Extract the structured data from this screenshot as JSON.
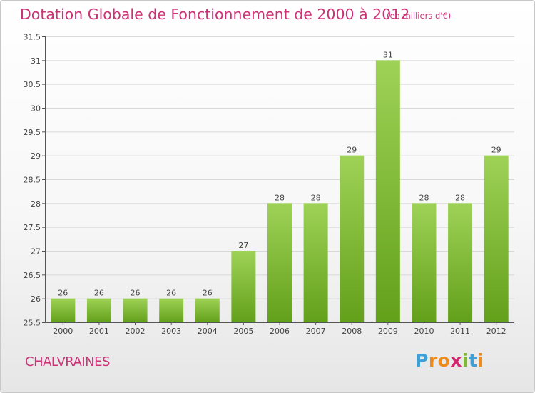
{
  "header": {
    "title": "Dotation Globale de Fonctionnement de 2000 à 2012",
    "subtitle": "(en milliers d'€)"
  },
  "footer": {
    "commune": "CHALVRAINES",
    "logo": "Proxiti",
    "logo_letters": [
      {
        "ch": "P",
        "color": "#3fa0d8"
      },
      {
        "ch": "r",
        "color": "#f08a1a"
      },
      {
        "ch": "o",
        "color": "#f08a1a"
      },
      {
        "ch": "x",
        "color": "#d4266f"
      },
      {
        "ch": "i",
        "color": "#7fb832"
      },
      {
        "ch": "t",
        "color": "#3fa0d8"
      },
      {
        "ch": "i",
        "color": "#f08a1a"
      }
    ]
  },
  "colors": {
    "title": "#cc3377",
    "bar_top": "#9ed257",
    "bar_bottom": "#63a01a",
    "grid": "#d8d8d8",
    "axis": "#555555"
  },
  "chart_data": {
    "type": "bar",
    "categories": [
      "2000",
      "2001",
      "2002",
      "2003",
      "2004",
      "2005",
      "2006",
      "2007",
      "2008",
      "2009",
      "2010",
      "2011",
      "2012"
    ],
    "values": [
      26,
      26,
      26,
      26,
      26,
      27,
      28,
      28,
      29,
      31,
      28,
      28,
      29
    ],
    "data_labels": [
      "26",
      "26",
      "26",
      "26",
      "26",
      "27",
      "28",
      "28",
      "29",
      "31",
      "28",
      "28",
      "29"
    ],
    "title": "Dotation Globale de Fonctionnement de 2000 à 2012",
    "subtitle": "(en milliers d'€)",
    "xlabel": "",
    "ylabel": "",
    "ylim": [
      25.5,
      31.5
    ],
    "yticks": [
      25.5,
      26,
      26.5,
      27,
      27.5,
      28,
      28.5,
      29,
      29.5,
      30,
      30.5,
      31,
      31.5
    ],
    "ytick_labels": [
      "25.5",
      "26",
      "26.5",
      "27",
      "27.5",
      "28",
      "28.5",
      "29",
      "29.5",
      "30",
      "30.5",
      "31",
      "31.5"
    ],
    "grid": true,
    "legend": "none"
  }
}
